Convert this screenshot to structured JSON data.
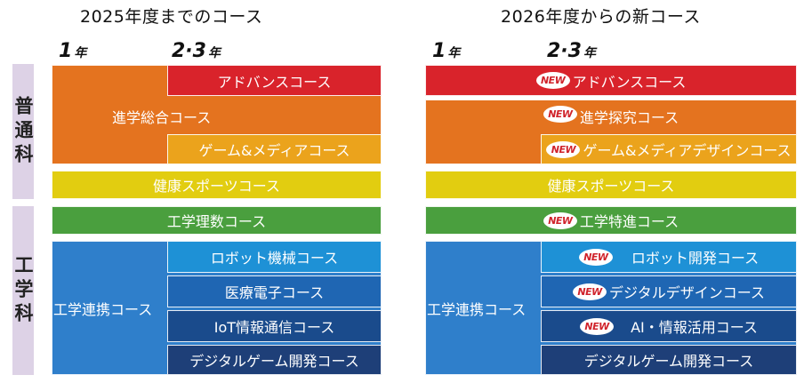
{
  "left": {
    "title": "2025年度までのコース",
    "year1_num": "1",
    "year1_unit": "年",
    "year23_num": "2·3",
    "year23_unit": "年",
    "dept_general": "普通科",
    "dept_engineering": "工学科",
    "courses": {
      "advance": "アドバンスコース",
      "shingaku_sogo": "進学総合コース",
      "game_media": "ゲーム&メディアコース",
      "kenko_sports": "健康スポーツコース",
      "kogaku_risu": "工学理数コース",
      "kogaku_renkei": "工学連携コース",
      "robot_kikai": "ロボット機械コース",
      "iryo_denshi": "医療電子コース",
      "iot_joho": "IoT情報通信コース",
      "digital_game": "デジタルゲーム開発コース"
    }
  },
  "right": {
    "title": "2026年度からの新コース",
    "year1_num": "1",
    "year1_unit": "年",
    "year23_num": "2·3",
    "year23_unit": "年",
    "new_badge": "NEW",
    "courses": {
      "advance": "アドバンスコース",
      "shingaku_tankyu": "進学探究コース",
      "game_media_design": "ゲーム&メディアデザインコース",
      "kenko_sports": "健康スポーツコース",
      "kogaku_tokushin": "工学特進コース",
      "kogaku_renkei": "工学連携コース",
      "robot_kaihatsu": "ロボット開発コース",
      "digital_design": "デジタルデザインコース",
      "ai_joho": "AI・情報活用コース",
      "digital_game": "デジタルゲーム開発コース"
    }
  }
}
